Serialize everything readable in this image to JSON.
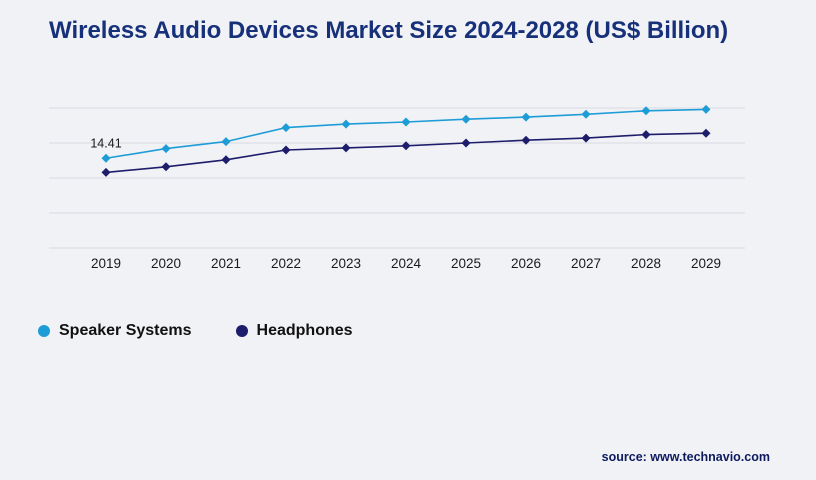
{
  "title": "Wireless Audio Devices Market Size 2024-2028 (US$ Billion)",
  "source": "source: www.technavio.com",
  "colors": {
    "background": "#f1f2f6",
    "title_text": "#17307a",
    "grid_line": "#d8dbe0",
    "axis_text": "#1a1a1a",
    "source_text": "#0d1b5e",
    "speaker_series": "#1e9cd7",
    "headphones_series": "#1d1d6b"
  },
  "legend": [
    {
      "label": "Speaker Systems",
      "color": "#1e9cd7"
    },
    {
      "label": "Headphones",
      "color": "#1d1d6b"
    }
  ],
  "chart_data": {
    "type": "line",
    "x": [
      2019,
      2020,
      2021,
      2022,
      2023,
      2024,
      2025,
      2026,
      2027,
      2028,
      2029
    ],
    "series": [
      {
        "name": "Speaker Systems",
        "color": "#1e9cd7",
        "marker": "diamond",
        "values": [
          14.41,
          15.1,
          15.6,
          16.6,
          16.85,
          17.0,
          17.2,
          17.35,
          17.55,
          17.8,
          17.9
        ]
      },
      {
        "name": "Headphones",
        "color": "#1d1d6b",
        "marker": "diamond",
        "values": [
          13.4,
          13.8,
          14.3,
          15.0,
          15.15,
          15.3,
          15.5,
          15.7,
          15.85,
          16.1,
          16.2
        ]
      }
    ],
    "ylim": [
      8,
      18
    ],
    "grid": true,
    "y_axis_labels_shown": false,
    "legend_position": "bottom",
    "annotations": [
      {
        "series": "Speaker Systems",
        "x": 2019,
        "label": "14.41"
      }
    ],
    "title": "Wireless Audio Devices Market Size 2024-2028 (US$ Billion)",
    "xlabel": "",
    "ylabel": ""
  }
}
